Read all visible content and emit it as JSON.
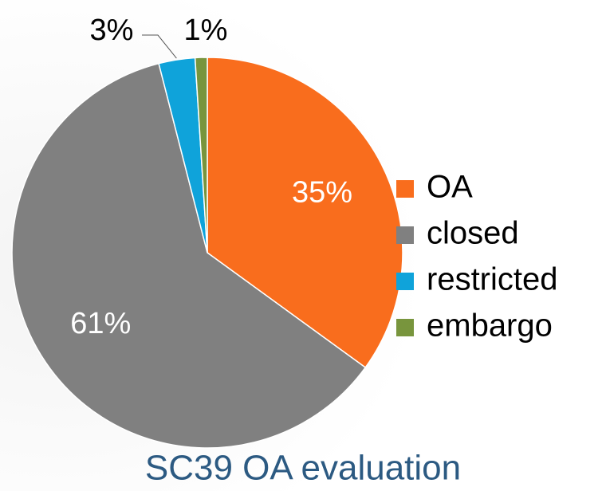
{
  "chart_data": {
    "type": "pie",
    "title": "SC39 OA evaluation",
    "categories": [
      "OA",
      "closed",
      "restricted",
      "embargo"
    ],
    "values": [
      35,
      61,
      3,
      1
    ],
    "value_labels": [
      "35%",
      "61%",
      "3%",
      "1%"
    ],
    "colors": [
      "#f96d1d",
      "#808080",
      "#0fa3da",
      "#78953d"
    ],
    "legend": "right"
  }
}
